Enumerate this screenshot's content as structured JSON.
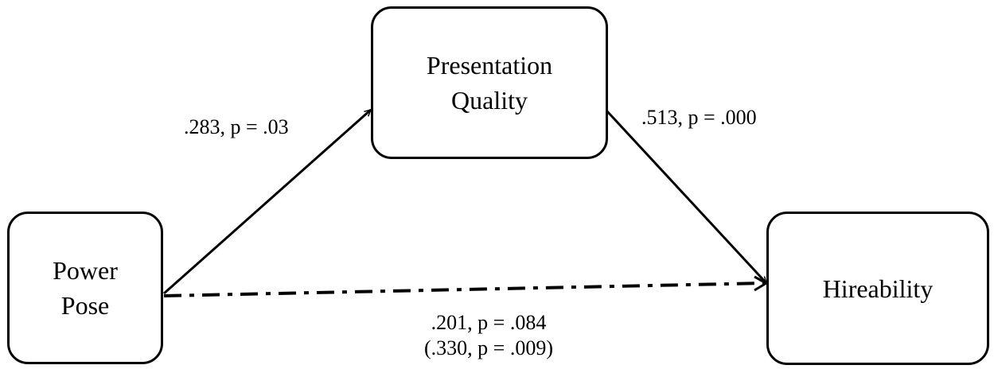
{
  "nodes": {
    "power_pose": {
      "lines": [
        "Power",
        "Pose"
      ]
    },
    "presentation_quality": {
      "lines": [
        "Presentation",
        "Quality"
      ]
    },
    "hireability": {
      "lines": [
        "Hireability"
      ]
    }
  },
  "edges": {
    "power_to_presentation": {
      "label": ".283, p = .03",
      "style": "solid"
    },
    "presentation_to_hire": {
      "label": ".513, p = .000",
      "style": "solid"
    },
    "power_to_hire": {
      "label_direct": ".201, p = .084",
      "label_total": "(.330, p = .009)",
      "style": "dash-dot"
    }
  },
  "colors": {
    "stroke": "#000000",
    "background": "#ffffff"
  }
}
